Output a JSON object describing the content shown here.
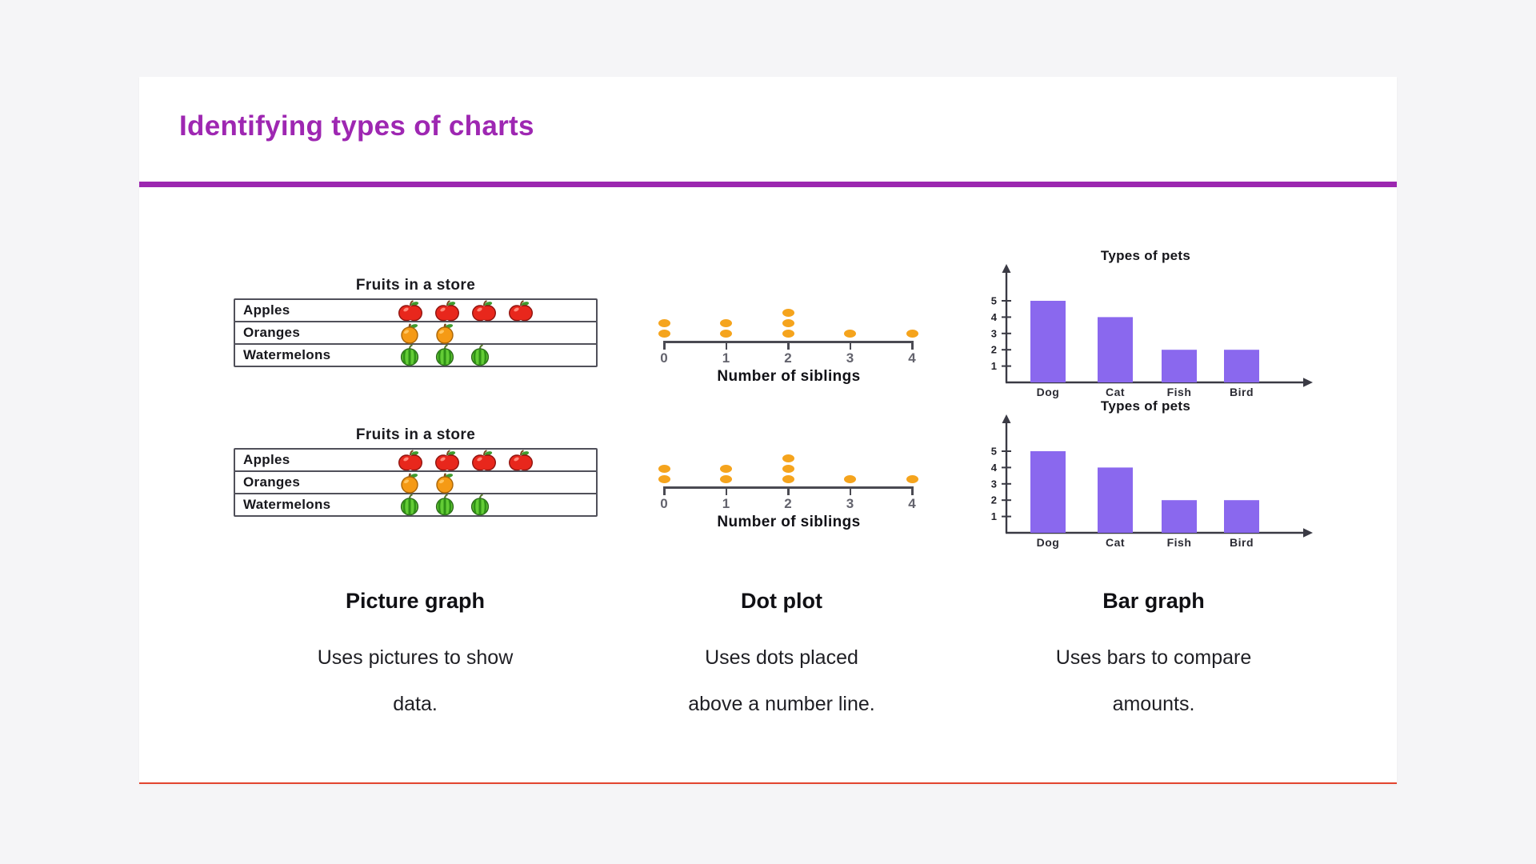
{
  "page": {
    "background_color": "#f5f5f7",
    "card_color": "#ffffff",
    "card_bottom_line_color": "#e2442f"
  },
  "header": {
    "title": "Identifying types of charts",
    "title_color": "#9e27b2",
    "rule_color": "#9c27b0"
  },
  "columns": [
    {
      "id": "picture-graph",
      "caption_title": "Picture graph",
      "caption_lines": [
        "Uses pictures to show",
        "data."
      ]
    },
    {
      "id": "dot-plot",
      "caption_title": "Dot plot",
      "caption_lines": [
        "Uses dots placed",
        "above a number line."
      ]
    },
    {
      "id": "bar-graph",
      "caption_title": "Bar graph",
      "caption_lines": [
        "Uses bars to compare",
        "amounts."
      ]
    }
  ],
  "chart_data": [
    {
      "type": "table",
      "variant": "picture-graph",
      "title": "Fruits in a store",
      "instances": 2,
      "rows": [
        {
          "label": "Apples",
          "icon": "apple-icon",
          "count": 4
        },
        {
          "label": "Oranges",
          "icon": "orange-icon",
          "count": 2
        },
        {
          "label": "Watermelons",
          "icon": "watermelon-icon",
          "count": 3
        }
      ]
    },
    {
      "type": "scatter",
      "variant": "dot-plot",
      "xlabel": "Number of siblings",
      "instances": 2,
      "x": [
        0,
        1,
        2,
        3,
        4
      ],
      "counts": [
        2,
        2,
        3,
        1,
        1
      ],
      "dot_color": "#f5a41d"
    },
    {
      "type": "bar",
      "variant": "bar-graph",
      "title": "Types of pets",
      "instances": 2,
      "categories": [
        "Dog",
        "Cat",
        "Fish",
        "Bird"
      ],
      "values": [
        5,
        4,
        2,
        2
      ],
      "yticks": [
        1,
        2,
        3,
        4,
        5
      ],
      "ylim": [
        0,
        5
      ],
      "bar_color": "#8a68ee",
      "axis_color": "#3a3a44"
    }
  ]
}
